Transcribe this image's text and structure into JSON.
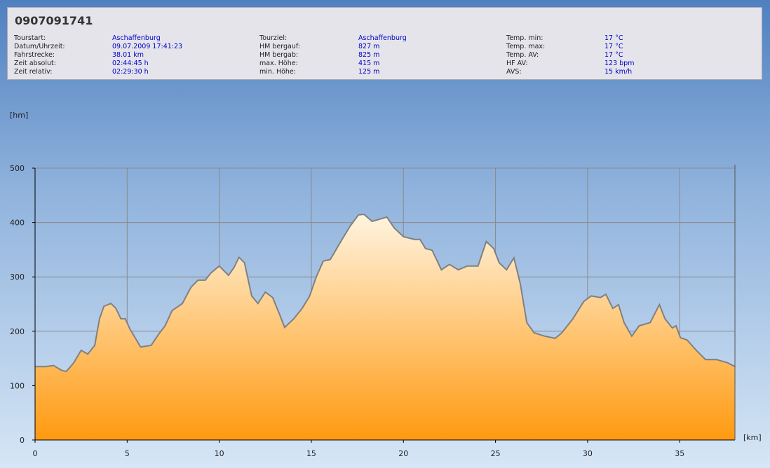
{
  "header": {
    "title": "0907091741",
    "columns": [
      [
        {
          "label": "Tourstart:",
          "value": "Aschaffenburg"
        },
        {
          "label": "Datum/Uhrzeit:",
          "value": "09.07.2009 17:41:23"
        },
        {
          "label": "Fahrstrecke:",
          "value": "38.01 km"
        },
        {
          "label": "Zeit absolut:",
          "value": "02:44:45 h"
        },
        {
          "label": "Zeit relativ:",
          "value": "02:29:30 h"
        }
      ],
      [
        {
          "label": "Tourziel:",
          "value": "Aschaffenburg"
        },
        {
          "label": "HM bergauf:",
          "value": "827 m"
        },
        {
          "label": "HM bergab:",
          "value": "825 m"
        },
        {
          "label": "max. Höhe:",
          "value": "415 m"
        },
        {
          "label": "min. Höhe:",
          "value": "125 m"
        }
      ],
      [
        {
          "label": "Temp. min:",
          "value": "17 °C"
        },
        {
          "label": "Temp. max:",
          "value": "17 °C"
        },
        {
          "label": "Temp. AV:",
          "value": "17 °C"
        },
        {
          "label": "HF AV:",
          "value": "123 bpm"
        },
        {
          "label": "AVS:",
          "value": "15 km/h"
        }
      ]
    ]
  },
  "chart_data": {
    "type": "area",
    "y_label": "[hm]",
    "x_label": "[km]",
    "color": "#ff9a10",
    "line_color": "#808080",
    "grid": true,
    "xlim": [
      0,
      38
    ],
    "ylim": [
      0,
      500
    ],
    "xticks": [
      0,
      5,
      10,
      15,
      20,
      25,
      30,
      35
    ],
    "yticks": [
      0,
      100,
      200,
      300,
      400,
      500
    ],
    "x": [
      0,
      0.57,
      1.0,
      1.45,
      1.7,
      2.1,
      2.5,
      2.86,
      3.24,
      3.5,
      3.74,
      4.12,
      4.39,
      4.66,
      4.9,
      5.15,
      5.73,
      6.3,
      6.68,
      7.06,
      7.44,
      8.0,
      8.47,
      8.85,
      9.24,
      9.54,
      10.0,
      10.5,
      10.8,
      11.07,
      11.37,
      11.76,
      12.1,
      12.5,
      12.9,
      13.3,
      13.55,
      14.05,
      14.5,
      14.9,
      15.27,
      15.65,
      16.03,
      16.6,
      17.1,
      17.56,
      17.86,
      18.3,
      18.8,
      19.1,
      19.5,
      20.0,
      20.6,
      20.9,
      21.2,
      21.56,
      22.06,
      22.5,
      22.98,
      23.47,
      24.05,
      24.5,
      24.9,
      25.2,
      25.6,
      26.0,
      26.35,
      26.7,
      27.1,
      27.67,
      28.24,
      28.6,
      29.2,
      29.8,
      30.2,
      30.7,
      30.99,
      31.37,
      31.68,
      31.98,
      32.4,
      32.8,
      33.4,
      33.9,
      34.2,
      34.6,
      34.8,
      35.04,
      35.4,
      35.9,
      36.4,
      37.0,
      37.6,
      38.0
    ],
    "values": [
      135,
      135,
      137,
      128,
      126,
      142,
      165,
      158,
      174,
      223,
      246,
      251,
      242,
      223,
      223,
      204,
      171,
      174,
      193,
      210,
      238,
      251,
      281,
      294,
      294,
      307,
      320,
      303,
      317,
      336,
      326,
      265,
      251,
      272,
      262,
      229,
      207,
      223,
      242,
      264,
      300,
      329,
      332,
      365,
      393,
      414,
      415,
      402,
      407,
      410,
      390,
      374,
      369,
      369,
      352,
      349,
      313,
      323,
      313,
      320,
      320,
      365,
      352,
      326,
      313,
      335,
      287,
      216,
      197,
      191,
      187,
      197,
      223,
      255,
      265,
      262,
      268,
      242,
      249,
      216,
      191,
      210,
      216,
      249,
      223,
      206,
      210,
      188,
      184,
      165,
      148,
      148,
      142,
      135
    ]
  }
}
